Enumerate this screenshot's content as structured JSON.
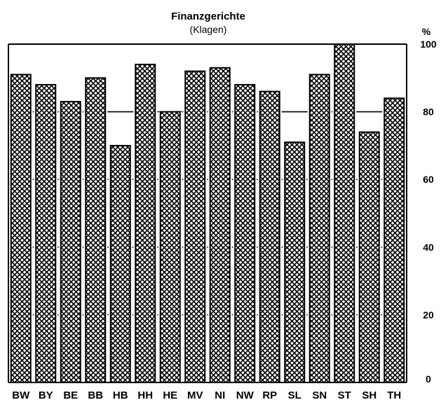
{
  "chart_data": {
    "type": "bar",
    "title": "Finanzgerichte",
    "subtitle": "(Klagen)",
    "unit_label": "%",
    "categories": [
      "BW",
      "BY",
      "BE",
      "BB",
      "HB",
      "HH",
      "HE",
      "MV",
      "NI",
      "NW",
      "RP",
      "SL",
      "SN",
      "ST",
      "SH",
      "TH"
    ],
    "values": [
      91,
      88,
      83,
      90,
      70,
      94,
      80,
      92,
      93,
      88,
      86,
      71,
      91,
      100,
      74,
      84
    ],
    "ylim": [
      0,
      100
    ],
    "yticks": [
      0,
      20,
      40,
      60,
      80,
      100
    ],
    "ytick_labels": [
      "0",
      "20",
      "40",
      "60",
      "80",
      "100"
    ],
    "grid": true,
    "bar_pattern": "crosshatch",
    "colors": {
      "bar_fill": "#ffffff",
      "hatch": "#000000",
      "axis": "#000000"
    }
  }
}
